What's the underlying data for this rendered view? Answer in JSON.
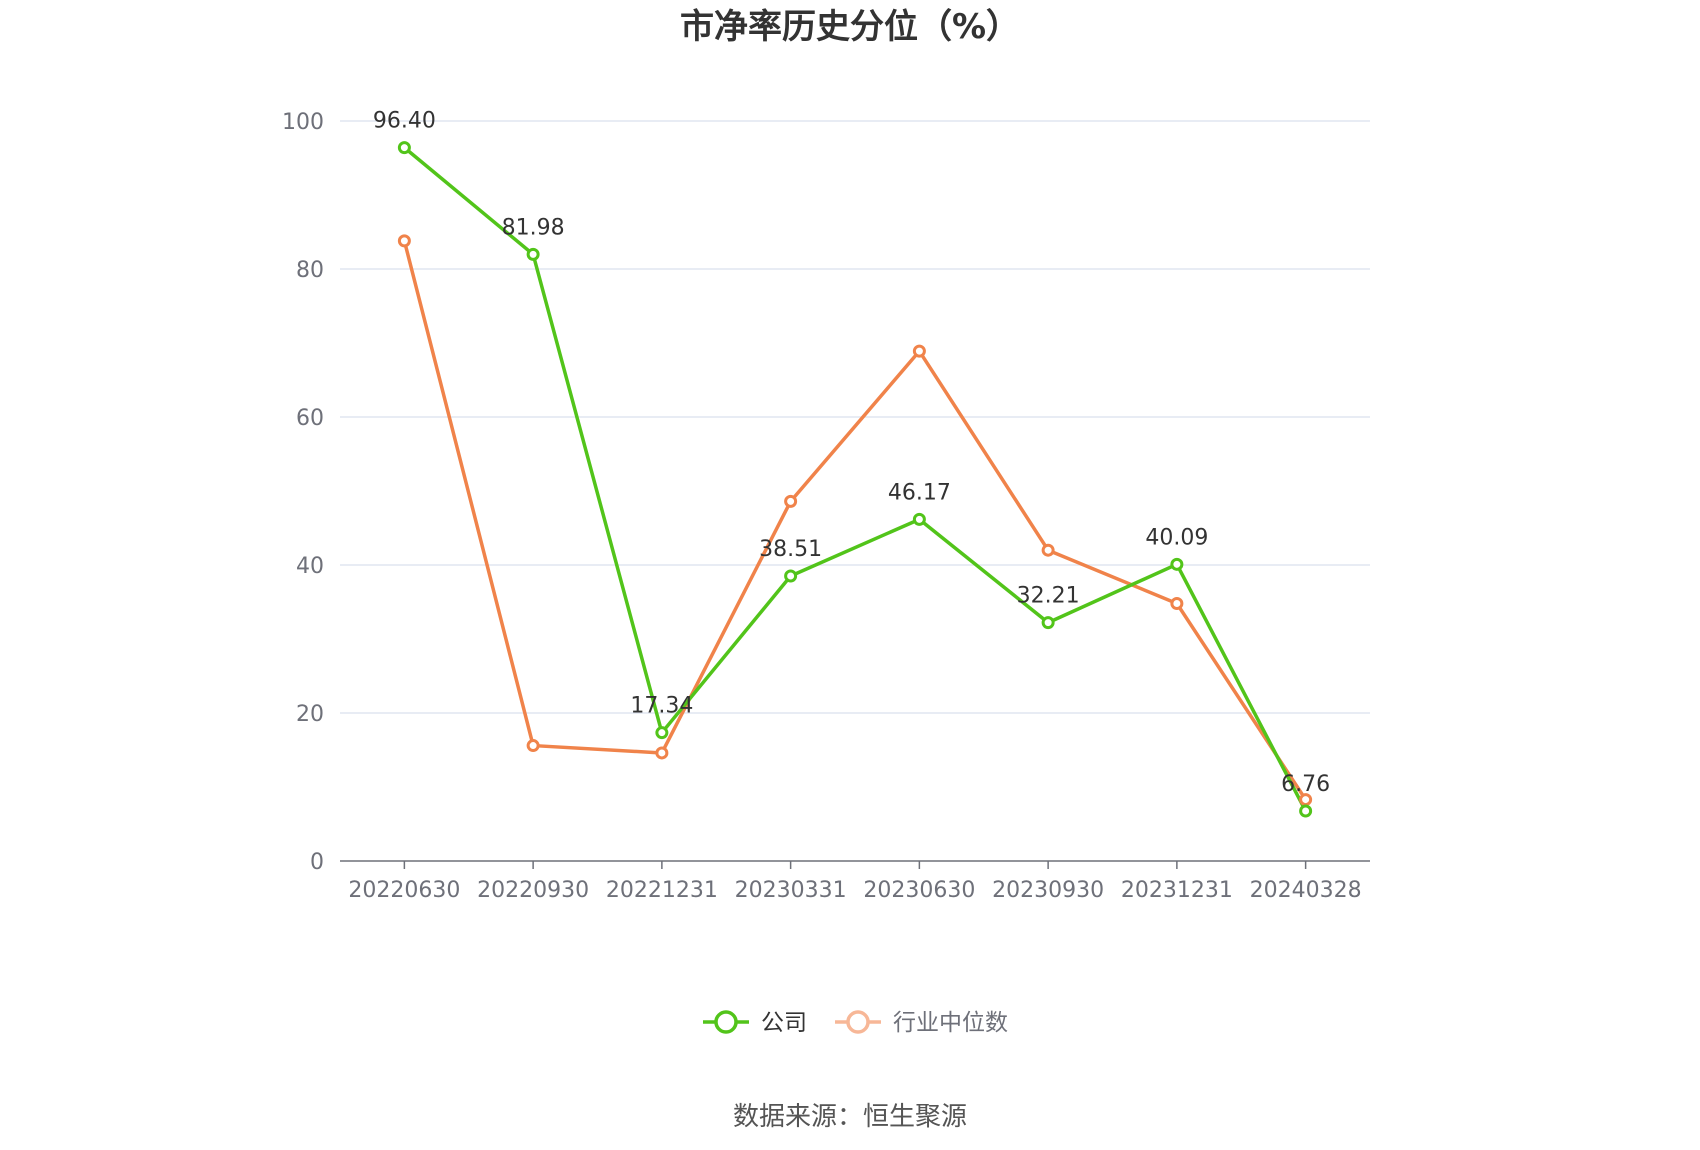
{
  "chart_data": {
    "type": "line",
    "title": "市净率历史分位（%）",
    "categories": [
      "20220630",
      "20220930",
      "20221231",
      "20230331",
      "20230630",
      "20230930",
      "20231231",
      "20240328"
    ],
    "ylim": [
      0,
      100
    ],
    "yticks": [
      0,
      20,
      40,
      60,
      80,
      100
    ],
    "grid": true,
    "legend_position": "bottom-center",
    "series": [
      {
        "name": "公司",
        "color": "#52c41a",
        "values": [
          96.4,
          81.98,
          17.34,
          38.51,
          46.17,
          32.21,
          40.09,
          6.76
        ],
        "data_labels": [
          "96.40",
          "81.98",
          "17.34",
          "38.51",
          "46.17",
          "32.21",
          "40.09",
          "6.76"
        ]
      },
      {
        "name": "行业中位数",
        "color": "#f0834a",
        "legend_color": "#f7b797",
        "values": [
          83.8,
          15.6,
          14.6,
          48.6,
          68.9,
          42.0,
          34.8,
          8.3
        ]
      }
    ],
    "source": "数据来源：恒生聚源"
  }
}
